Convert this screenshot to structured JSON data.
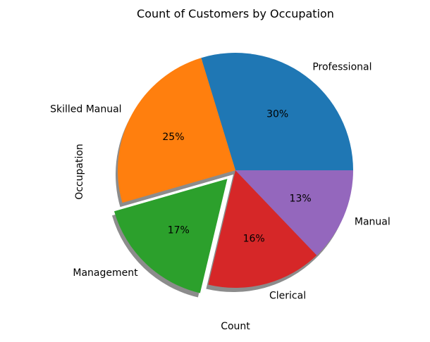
{
  "chart_data": {
    "type": "pie",
    "title": "Count of Customers by Occupation",
    "xlabel": "Count",
    "ylabel": "Occupation",
    "labels": [
      "Professional",
      "Skilled Manual",
      "Management",
      "Clerical",
      "Manual"
    ],
    "values": [
      30,
      25,
      17,
      16,
      13
    ],
    "percent_labels": [
      "30%",
      "25%",
      "17%",
      "16%",
      "13%"
    ],
    "colors": [
      "#1f77b4",
      "#ff7f0e",
      "#2ca02c",
      "#d62728",
      "#9467bd"
    ],
    "exploded": [
      "Management"
    ],
    "shadow": true,
    "start_angle_deg": 0,
    "direction": "counterclockwise"
  }
}
